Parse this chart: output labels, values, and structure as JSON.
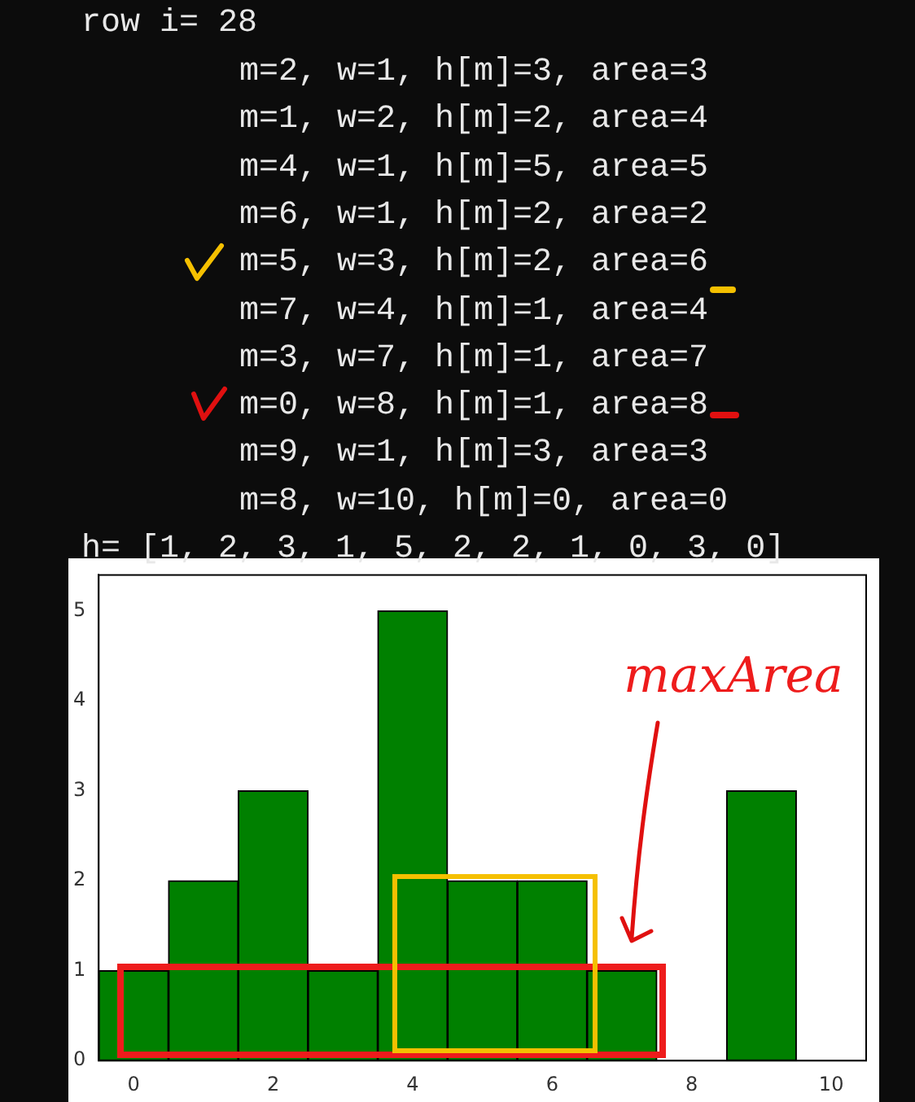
{
  "chart_data": {
    "type": "bar",
    "title": "row i= 28",
    "annotations": [
      "m=2, w=1, h[m]=3, area=3",
      "m=1, w=2, h[m]=2, area=4",
      "m=4, w=1, h[m]=5, area=5",
      "m=6, w=1, h[m]=2, area=2",
      "m=5, w=3, h[m]=2, area=6",
      "m=7, w=4, h[m]=1, area=4",
      "m=3, w=7, h[m]=1, area=7",
      "m=0, w=8, h[m]=1, area=8",
      "m=9, w=1, h[m]=3, area=3",
      "m=8, w=10, h[m]=0, area=0",
      "h= [1, 2, 3, 1, 5, 2, 2, 1, 0, 3, 0]",
      "maxArea"
    ],
    "x": [
      0,
      1,
      2,
      3,
      4,
      5,
      6,
      7,
      8,
      9,
      10
    ],
    "values": [
      1,
      2,
      3,
      1,
      5,
      2,
      2,
      1,
      0,
      3,
      0
    ],
    "color": "#008000",
    "xlim": [
      -0.5,
      10.5
    ],
    "xticks": [
      0,
      2,
      4,
      6,
      8,
      10
    ],
    "ylim": [
      0,
      5.4
    ],
    "yticks": [
      0,
      1,
      2,
      3,
      4,
      5
    ],
    "grid": false,
    "legend": false
  }
}
